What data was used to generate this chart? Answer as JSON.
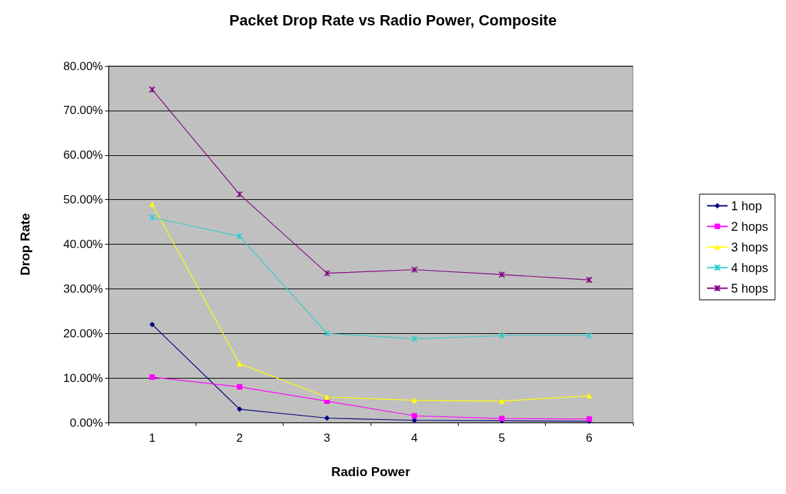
{
  "chart_data": {
    "type": "line",
    "title": "Packet Drop Rate vs Radio Power, Composite",
    "xlabel": "Radio Power",
    "ylabel": "Drop Rate",
    "categories": [
      "1",
      "2",
      "3",
      "4",
      "5",
      "6"
    ],
    "ylim": [
      0,
      80
    ],
    "yticks": [
      {
        "value": 0,
        "label": "0.00%"
      },
      {
        "value": 10,
        "label": "10.00%"
      },
      {
        "value": 20,
        "label": "20.00%"
      },
      {
        "value": 30,
        "label": "30.00%"
      },
      {
        "value": 40,
        "label": "40.00%"
      },
      {
        "value": 50,
        "label": "50.00%"
      },
      {
        "value": 60,
        "label": "60.00%"
      },
      {
        "value": 70,
        "label": "70.00%"
      },
      {
        "value": 80,
        "label": "80.00%"
      }
    ],
    "grid": "y",
    "legend": "right",
    "series": [
      {
        "name": "1 hop",
        "color": "#000080",
        "marker": "diamond",
        "values": [
          22.0,
          3.0,
          1.0,
          0.5,
          0.4,
          0.3
        ]
      },
      {
        "name": "2 hops",
        "color": "#ff00ff",
        "marker": "square",
        "values": [
          10.2,
          8.0,
          4.8,
          1.5,
          0.9,
          0.8
        ]
      },
      {
        "name": "3 hops",
        "color": "#ffff00",
        "marker": "triangle",
        "values": [
          49.0,
          13.2,
          5.7,
          5.0,
          4.8,
          6.0
        ]
      },
      {
        "name": "4 hops",
        "color": "#33cccc",
        "marker": "cross",
        "values": [
          46.0,
          41.8,
          20.0,
          18.8,
          19.5,
          19.5
        ]
      },
      {
        "name": "5 hops",
        "color": "#800080",
        "marker": "cross",
        "values": [
          74.7,
          51.2,
          33.5,
          34.3,
          33.2,
          32.0
        ]
      }
    ]
  }
}
